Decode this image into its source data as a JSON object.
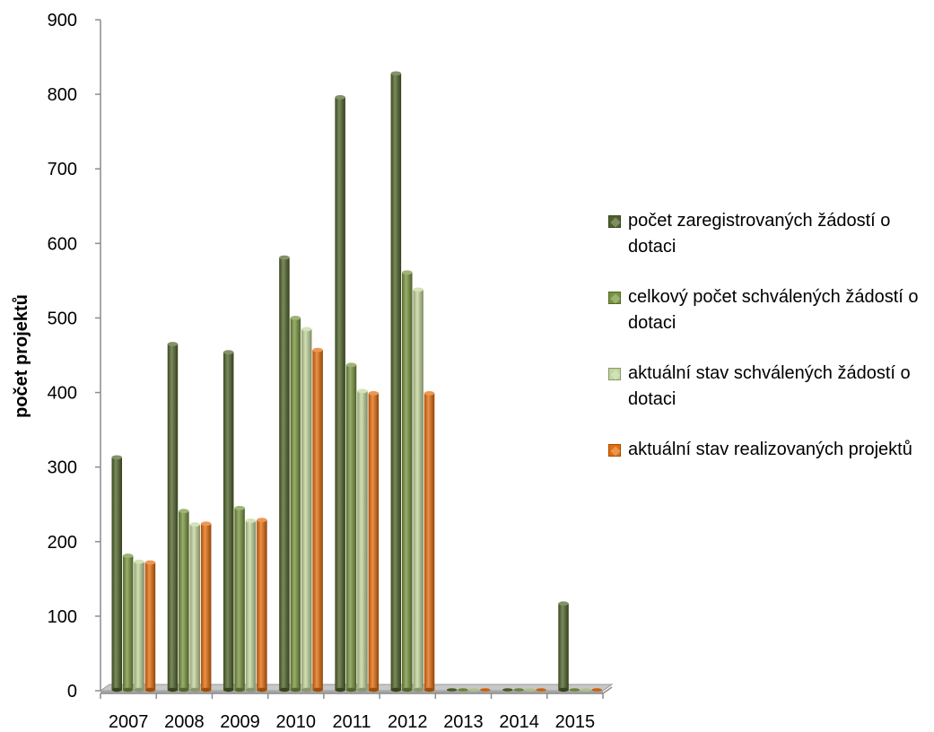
{
  "chart_data": {
    "type": "bar",
    "title": "",
    "xlabel": "",
    "ylabel": "počet projektů",
    "ylim": [
      0,
      900
    ],
    "yticks": [
      0,
      100,
      200,
      300,
      400,
      500,
      600,
      700,
      800,
      900
    ],
    "categories": [
      "2007",
      "2008",
      "2009",
      "2010",
      "2011",
      "2012",
      "2013",
      "2014",
      "2015"
    ],
    "grid": false,
    "legend_position": "right",
    "series": [
      {
        "name": "počet zaregistrovaných žádostí o dotaci",
        "color": "#4f6228",
        "values": [
          313,
          465,
          454,
          581,
          796,
          828,
          0,
          0,
          117
        ]
      },
      {
        "name": "celkový počet schválených žádostí o dotaci",
        "color": "#77933c",
        "values": [
          181,
          241,
          245,
          500,
          437,
          561,
          0,
          0,
          0
        ]
      },
      {
        "name": "aktuální stav schválených žádostí o dotaci",
        "color": "#c3d69b",
        "values": [
          173,
          223,
          228,
          485,
          402,
          538,
          0,
          0,
          0
        ]
      },
      {
        "name": "aktuální stav realizovaných projektů",
        "color": "#e46c0a",
        "values": [
          172,
          224,
          229,
          457,
          399,
          399,
          0,
          0,
          0
        ]
      }
    ]
  }
}
